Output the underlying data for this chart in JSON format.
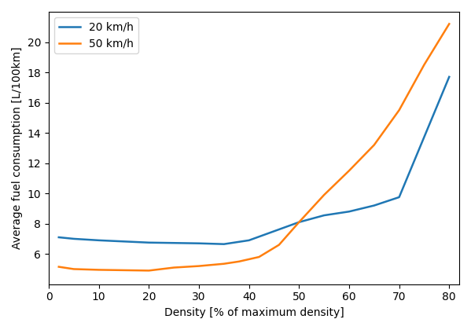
{
  "series": [
    {
      "label": "20 km/h",
      "color": "#1f77b4",
      "x": [
        2,
        5,
        10,
        20,
        30,
        35,
        40,
        45,
        50,
        55,
        60,
        65,
        70,
        80
      ],
      "y": [
        7.1,
        7.0,
        6.9,
        6.75,
        6.7,
        6.65,
        6.9,
        7.5,
        8.1,
        8.55,
        8.8,
        9.2,
        9.75,
        17.7
      ]
    },
    {
      "label": "50 km/h",
      "color": "#ff7f0e",
      "x": [
        2,
        5,
        10,
        20,
        25,
        30,
        35,
        38,
        42,
        46,
        50,
        55,
        60,
        65,
        70,
        75,
        80
      ],
      "y": [
        5.15,
        5.0,
        4.95,
        4.9,
        5.1,
        5.2,
        5.35,
        5.5,
        5.8,
        6.6,
        8.1,
        9.9,
        11.5,
        13.2,
        15.5,
        18.5,
        21.2
      ]
    }
  ],
  "xlabel": "Density [% of maximum density]",
  "ylabel": "Average fuel consumption [L/100km]",
  "xlim": [
    0,
    82
  ],
  "ylim": [
    4,
    22
  ],
  "xticks": [
    0,
    10,
    20,
    30,
    40,
    50,
    60,
    70,
    80
  ],
  "yticks": [
    6,
    8,
    10,
    12,
    14,
    16,
    18,
    20
  ],
  "legend_loc": "upper left",
  "linewidth": 1.8
}
